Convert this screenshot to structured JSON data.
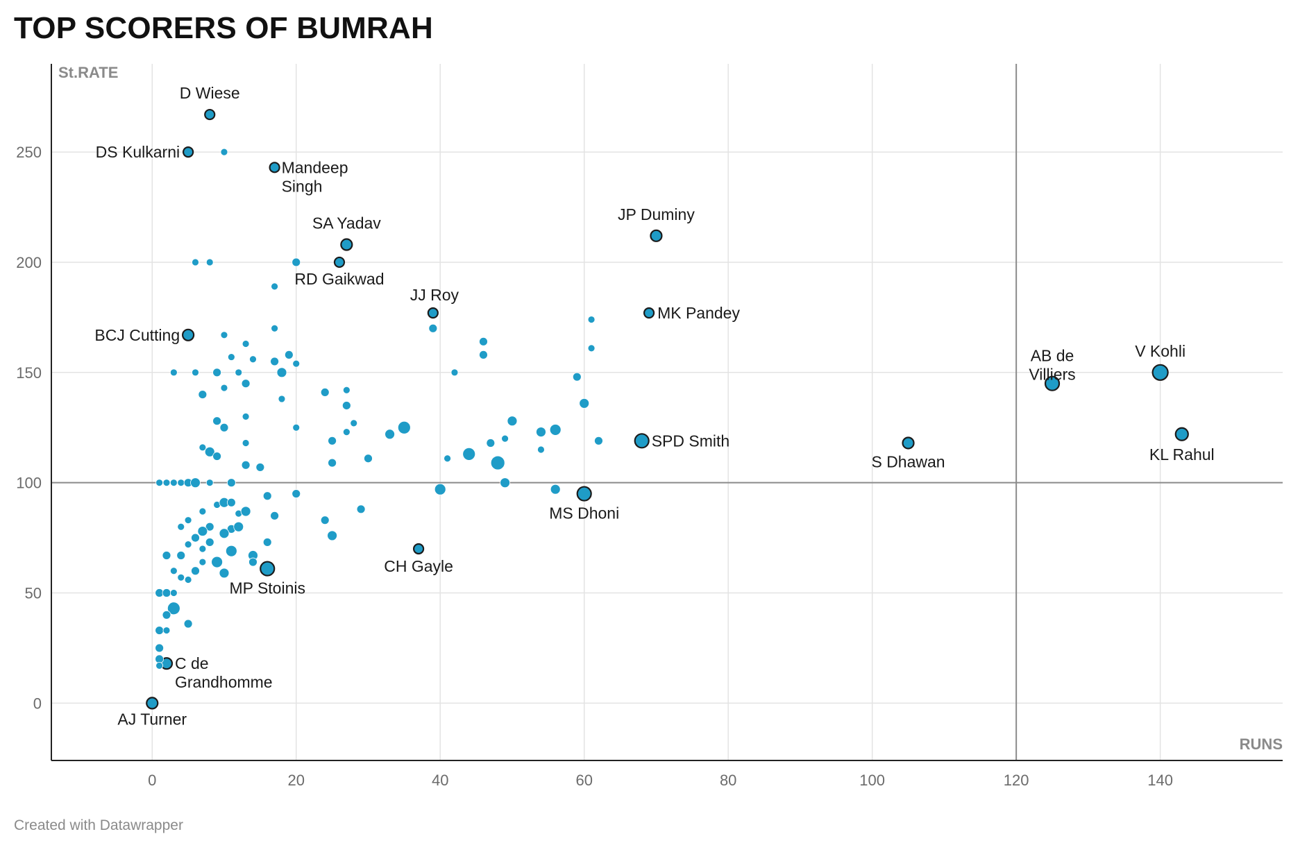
{
  "title": "TOP SCORERS OF BUMRAH",
  "credit": "Created with Datawrapper",
  "chart_data": {
    "type": "scatter",
    "title": "TOP SCORERS OF BUMRAH",
    "xlabel": "RUNS",
    "ylabel": "St.RATE",
    "xlim": [
      -14,
      157
    ],
    "ylim": [
      -26,
      290
    ],
    "xticks": [
      0,
      20,
      40,
      60,
      80,
      100,
      120,
      140
    ],
    "yticks": [
      0,
      50,
      100,
      150,
      200,
      250
    ],
    "reference_lines": {
      "x": 120,
      "y": 100
    },
    "grid": true,
    "point_color": "#1f9cc7",
    "points": [
      {
        "x": 0,
        "y": 0,
        "s": 8,
        "label": "AJ Turner"
      },
      {
        "x": 2,
        "y": 18,
        "s": 8,
        "label": "C de Grandhomme"
      },
      {
        "x": 8,
        "y": 267,
        "s": 7,
        "label": "D Wiese"
      },
      {
        "x": 5,
        "y": 250,
        "s": 7,
        "label": "DS Kulkarni"
      },
      {
        "x": 17,
        "y": 243,
        "s": 7,
        "label": "Mandeep Singh"
      },
      {
        "x": 27,
        "y": 208,
        "s": 8,
        "label": "SA Yadav"
      },
      {
        "x": 26,
        "y": 200,
        "s": 7,
        "label": "RD Gaikwad"
      },
      {
        "x": 5,
        "y": 167,
        "s": 8,
        "label": "BCJ Cutting"
      },
      {
        "x": 39,
        "y": 177,
        "s": 7,
        "label": "JJ Roy"
      },
      {
        "x": 70,
        "y": 212,
        "s": 8,
        "label": "JP Duminy"
      },
      {
        "x": 69,
        "y": 177,
        "s": 7,
        "label": "MK Pandey"
      },
      {
        "x": 68,
        "y": 119,
        "s": 10,
        "label": "SPD Smith"
      },
      {
        "x": 105,
        "y": 118,
        "s": 8,
        "label": "S Dhawan"
      },
      {
        "x": 60,
        "y": 95,
        "s": 10,
        "label": "MS Dhoni"
      },
      {
        "x": 37,
        "y": 70,
        "s": 7,
        "label": "CH Gayle"
      },
      {
        "x": 16,
        "y": 61,
        "s": 10,
        "label": "MP Stoinis"
      },
      {
        "x": 125,
        "y": 145,
        "s": 10,
        "label": "AB de Villiers"
      },
      {
        "x": 140,
        "y": 150,
        "s": 11,
        "label": "V Kohli"
      },
      {
        "x": 143,
        "y": 122,
        "s": 9,
        "label": "KL Rahul"
      },
      {
        "x": 10,
        "y": 250,
        "s": 5
      },
      {
        "x": 6,
        "y": 200,
        "s": 5
      },
      {
        "x": 8,
        "y": 200,
        "s": 5
      },
      {
        "x": 20,
        "y": 200,
        "s": 6
      },
      {
        "x": 17,
        "y": 189,
        "s": 5
      },
      {
        "x": 17,
        "y": 170,
        "s": 5
      },
      {
        "x": 10,
        "y": 167,
        "s": 5
      },
      {
        "x": 13,
        "y": 163,
        "s": 5
      },
      {
        "x": 11,
        "y": 157,
        "s": 5
      },
      {
        "x": 14,
        "y": 156,
        "s": 5
      },
      {
        "x": 19,
        "y": 158,
        "s": 6
      },
      {
        "x": 17,
        "y": 155,
        "s": 6
      },
      {
        "x": 20,
        "y": 154,
        "s": 5
      },
      {
        "x": 3,
        "y": 150,
        "s": 5
      },
      {
        "x": 6,
        "y": 150,
        "s": 5
      },
      {
        "x": 9,
        "y": 150,
        "s": 6
      },
      {
        "x": 12,
        "y": 150,
        "s": 5
      },
      {
        "x": 18,
        "y": 150,
        "s": 7
      },
      {
        "x": 13,
        "y": 145,
        "s": 6
      },
      {
        "x": 10,
        "y": 143,
        "s": 5
      },
      {
        "x": 7,
        "y": 140,
        "s": 6
      },
      {
        "x": 18,
        "y": 138,
        "s": 5
      },
      {
        "x": 13,
        "y": 130,
        "s": 5
      },
      {
        "x": 9,
        "y": 128,
        "s": 6
      },
      {
        "x": 10,
        "y": 125,
        "s": 6
      },
      {
        "x": 20,
        "y": 125,
        "s": 5
      },
      {
        "x": 13,
        "y": 118,
        "s": 5
      },
      {
        "x": 7,
        "y": 116,
        "s": 5
      },
      {
        "x": 8,
        "y": 114,
        "s": 7
      },
      {
        "x": 9,
        "y": 112,
        "s": 6
      },
      {
        "x": 13,
        "y": 108,
        "s": 6
      },
      {
        "x": 15,
        "y": 107,
        "s": 6
      },
      {
        "x": 24,
        "y": 141,
        "s": 6
      },
      {
        "x": 27,
        "y": 142,
        "s": 5
      },
      {
        "x": 27,
        "y": 135,
        "s": 6
      },
      {
        "x": 28,
        "y": 127,
        "s": 5
      },
      {
        "x": 27,
        "y": 123,
        "s": 5
      },
      {
        "x": 25,
        "y": 119,
        "s": 6
      },
      {
        "x": 25,
        "y": 109,
        "s": 6
      },
      {
        "x": 30,
        "y": 111,
        "s": 6
      },
      {
        "x": 33,
        "y": 122,
        "s": 7
      },
      {
        "x": 35,
        "y": 125,
        "s": 9
      },
      {
        "x": 39,
        "y": 170,
        "s": 6
      },
      {
        "x": 42,
        "y": 150,
        "s": 5
      },
      {
        "x": 41,
        "y": 111,
        "s": 5
      },
      {
        "x": 44,
        "y": 113,
        "s": 9
      },
      {
        "x": 46,
        "y": 164,
        "s": 6
      },
      {
        "x": 46,
        "y": 158,
        "s": 6
      },
      {
        "x": 47,
        "y": 118,
        "s": 6
      },
      {
        "x": 48,
        "y": 109,
        "s": 10
      },
      {
        "x": 49,
        "y": 120,
        "s": 5
      },
      {
        "x": 50,
        "y": 128,
        "s": 7
      },
      {
        "x": 54,
        "y": 123,
        "s": 7
      },
      {
        "x": 54,
        "y": 115,
        "s": 5
      },
      {
        "x": 56,
        "y": 124,
        "s": 8
      },
      {
        "x": 59,
        "y": 148,
        "s": 6
      },
      {
        "x": 60,
        "y": 136,
        "s": 7
      },
      {
        "x": 61,
        "y": 174,
        "s": 5
      },
      {
        "x": 61,
        "y": 161,
        "s": 5
      },
      {
        "x": 62,
        "y": 119,
        "s": 6
      },
      {
        "x": 1,
        "y": 100,
        "s": 5
      },
      {
        "x": 2,
        "y": 100,
        "s": 5
      },
      {
        "x": 3,
        "y": 100,
        "s": 5
      },
      {
        "x": 4,
        "y": 100,
        "s": 5
      },
      {
        "x": 5,
        "y": 100,
        "s": 6
      },
      {
        "x": 6,
        "y": 100,
        "s": 7
      },
      {
        "x": 8,
        "y": 100,
        "s": 5
      },
      {
        "x": 11,
        "y": 100,
        "s": 6
      },
      {
        "x": 40,
        "y": 97,
        "s": 8
      },
      {
        "x": 49,
        "y": 100,
        "s": 7
      },
      {
        "x": 56,
        "y": 97,
        "s": 7
      },
      {
        "x": 16,
        "y": 94,
        "s": 6
      },
      {
        "x": 20,
        "y": 95,
        "s": 6
      },
      {
        "x": 9,
        "y": 90,
        "s": 5
      },
      {
        "x": 10,
        "y": 91,
        "s": 7
      },
      {
        "x": 11,
        "y": 91,
        "s": 6
      },
      {
        "x": 7,
        "y": 87,
        "s": 5
      },
      {
        "x": 12,
        "y": 86,
        "s": 5
      },
      {
        "x": 13,
        "y": 87,
        "s": 7
      },
      {
        "x": 17,
        "y": 85,
        "s": 6
      },
      {
        "x": 5,
        "y": 83,
        "s": 5
      },
      {
        "x": 4,
        "y": 80,
        "s": 5
      },
      {
        "x": 8,
        "y": 80,
        "s": 6
      },
      {
        "x": 11,
        "y": 79,
        "s": 6
      },
      {
        "x": 12,
        "y": 80,
        "s": 7
      },
      {
        "x": 10,
        "y": 77,
        "s": 7
      },
      {
        "x": 7,
        "y": 78,
        "s": 7
      },
      {
        "x": 6,
        "y": 75,
        "s": 6
      },
      {
        "x": 8,
        "y": 73,
        "s": 6
      },
      {
        "x": 5,
        "y": 72,
        "s": 5
      },
      {
        "x": 7,
        "y": 70,
        "s": 5
      },
      {
        "x": 11,
        "y": 69,
        "s": 8
      },
      {
        "x": 16,
        "y": 73,
        "s": 6
      },
      {
        "x": 24,
        "y": 83,
        "s": 6
      },
      {
        "x": 25,
        "y": 76,
        "s": 7
      },
      {
        "x": 29,
        "y": 88,
        "s": 6
      },
      {
        "x": 2,
        "y": 67,
        "s": 6
      },
      {
        "x": 4,
        "y": 67,
        "s": 6
      },
      {
        "x": 14,
        "y": 67,
        "s": 7
      },
      {
        "x": 7,
        "y": 64,
        "s": 5
      },
      {
        "x": 9,
        "y": 64,
        "s": 8
      },
      {
        "x": 14,
        "y": 64,
        "s": 6
      },
      {
        "x": 3,
        "y": 60,
        "s": 5
      },
      {
        "x": 6,
        "y": 60,
        "s": 6
      },
      {
        "x": 10,
        "y": 59,
        "s": 7
      },
      {
        "x": 4,
        "y": 57,
        "s": 5
      },
      {
        "x": 5,
        "y": 56,
        "s": 5
      },
      {
        "x": 1,
        "y": 50,
        "s": 6
      },
      {
        "x": 2,
        "y": 50,
        "s": 6
      },
      {
        "x": 3,
        "y": 50,
        "s": 5
      },
      {
        "x": 3,
        "y": 43,
        "s": 9
      },
      {
        "x": 2,
        "y": 40,
        "s": 6
      },
      {
        "x": 5,
        "y": 36,
        "s": 6
      },
      {
        "x": 1,
        "y": 33,
        "s": 6
      },
      {
        "x": 2,
        "y": 33,
        "s": 5
      },
      {
        "x": 1,
        "y": 25,
        "s": 6
      },
      {
        "x": 1,
        "y": 20,
        "s": 6
      },
      {
        "x": 1,
        "y": 17,
        "s": 5
      }
    ]
  }
}
